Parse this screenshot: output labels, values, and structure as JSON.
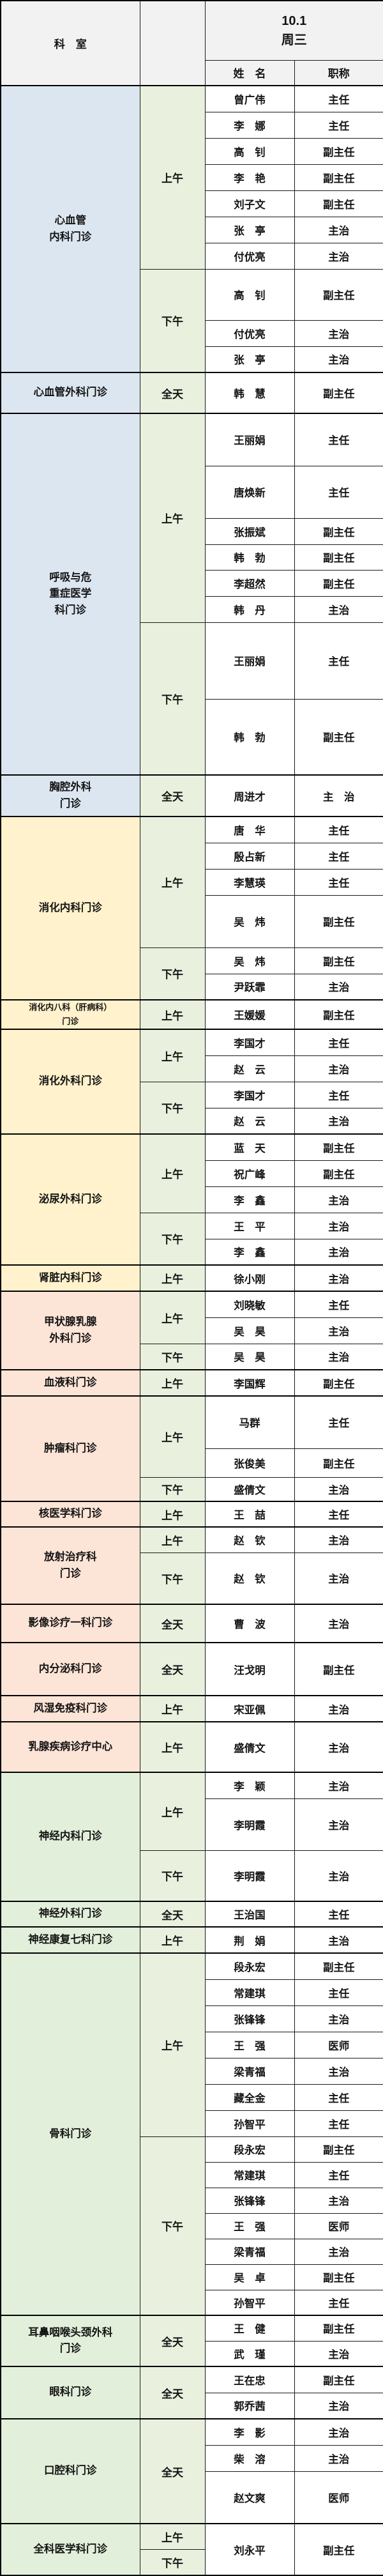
{
  "header": {
    "dept_label": "科　室",
    "date": "10.1",
    "weekday": "周三",
    "name_label": "姓　名",
    "title_label": "职称"
  },
  "colors": {
    "header_bg": "#f2f2f2",
    "blue": "#dce6f1",
    "yellow": "#fff2cc",
    "pink": "#fce4d6",
    "green": "#e2efda",
    "time": "#e9f1de",
    "border": "#000000"
  },
  "sections": [
    {
      "dept": [
        "心血管",
        "内科门诊"
      ],
      "color": "blue",
      "periods": [
        {
          "label": "上午",
          "rows": [
            {
              "name": "曾广伟",
              "title": "主任",
              "h": 41
            },
            {
              "name": "李　娜",
              "title": "主任",
              "h": 41
            },
            {
              "name": "高　钊",
              "title": "副主任",
              "h": 41
            },
            {
              "name": "李　艳",
              "title": "副主任",
              "h": 41
            },
            {
              "name": "刘子文",
              "title": "副主任",
              "h": 41
            },
            {
              "name": "张　亭",
              "title": "主治",
              "h": 41
            },
            {
              "name": "付优亮",
              "title": "主治",
              "h": 41
            }
          ]
        },
        {
          "label": "下午",
          "rows": [
            {
              "name": "高　钊",
              "title": "副主任",
              "h": 80
            },
            {
              "name": "付优亮",
              "title": "主治",
              "h": 41
            },
            {
              "name": "张　亭",
              "title": "主治",
              "h": 41
            }
          ]
        }
      ]
    },
    {
      "dept": [
        "心血管外科门诊"
      ],
      "color": "blue",
      "periods": [
        {
          "label": "全天",
          "rows": [
            {
              "name": "韩　慧",
              "title": "副主任",
              "h": 64
            }
          ]
        }
      ]
    },
    {
      "dept": [
        "呼吸与危",
        "重症医学",
        "科门诊"
      ],
      "color": "blue",
      "periods": [
        {
          "label": "上午",
          "rows": [
            {
              "name": "王丽娟",
              "title": "主任",
              "h": 82
            },
            {
              "name": "唐焕新",
              "title": "主任",
              "h": 82
            },
            {
              "name": "张振斌",
              "title": "副主任",
              "h": 41
            },
            {
              "name": "韩　勃",
              "title": "副主任",
              "h": 40
            },
            {
              "name": "李超然",
              "title": "副主任",
              "h": 41
            },
            {
              "name": "韩　丹",
              "title": "主治",
              "h": 41
            }
          ]
        },
        {
          "label": "下午",
          "rows": [
            {
              "name": "王丽娟",
              "title": "主任",
              "h": 120
            },
            {
              "name": "韩　勃",
              "title": "副主任",
              "h": 119
            }
          ]
        }
      ]
    },
    {
      "dept": [
        "胸腔外科",
        "门诊"
      ],
      "color": "blue",
      "periods": [
        {
          "label": "全天",
          "rows": [
            {
              "name": "周进才",
              "title": "主　治",
              "h": 65
            }
          ]
        }
      ]
    },
    {
      "dept": [
        "消化内科门诊"
      ],
      "color": "yellow",
      "periods": [
        {
          "label": "上午",
          "rows": [
            {
              "name": "唐　华",
              "title": "主任",
              "h": 41
            },
            {
              "name": "殷占新",
              "title": "主任",
              "h": 41
            },
            {
              "name": "李慧瑛",
              "title": "主任",
              "h": 41
            },
            {
              "name": "吴　炜",
              "title": "副主任",
              "h": 82
            }
          ]
        },
        {
          "label": "下午",
          "rows": [
            {
              "name": "吴　炜",
              "title": "副主任",
              "h": 41
            },
            {
              "name": "尹跃霏",
              "title": "主治",
              "h": 41
            }
          ]
        }
      ]
    },
    {
      "dept": [
        "消化内八科（肝病科）",
        "门诊"
      ],
      "color": "yellow",
      "periods": [
        {
          "label": "上午",
          "rows": [
            {
              "name": "王媛媛",
              "title": "副主任",
              "h": 45
            }
          ]
        }
      ]
    },
    {
      "dept": [
        "消化外科门诊"
      ],
      "color": "yellow",
      "periods": [
        {
          "label": "上午",
          "rows": [
            {
              "name": "李国才",
              "title": "主任",
              "h": 41
            },
            {
              "name": "赵　云",
              "title": "主治",
              "h": 41
            }
          ]
        },
        {
          "label": "下午",
          "rows": [
            {
              "name": "李国才",
              "title": "主任",
              "h": 41
            },
            {
              "name": "赵　云",
              "title": "主治",
              "h": 41
            }
          ]
        }
      ]
    },
    {
      "dept": [
        "泌尿外科门诊"
      ],
      "color": "yellow",
      "periods": [
        {
          "label": "上午",
          "rows": [
            {
              "name": "蓝　天",
              "title": "副主任",
              "h": 41
            },
            {
              "name": "祝广峰",
              "title": "副主任",
              "h": 41
            },
            {
              "name": "李　鑫",
              "title": "主治",
              "h": 41
            }
          ]
        },
        {
          "label": "下午",
          "rows": [
            {
              "name": "王　平",
              "title": "主治",
              "h": 41
            },
            {
              "name": "李　鑫",
              "title": "主治",
              "h": 41
            }
          ]
        }
      ]
    },
    {
      "dept": [
        "肾脏内科门诊"
      ],
      "color": "yellow",
      "periods": [
        {
          "label": "上午",
          "rows": [
            {
              "name": "徐小刚",
              "title": "主治",
              "h": 41
            }
          ]
        }
      ]
    },
    {
      "dept": [
        "甲状腺乳腺",
        "外科门诊"
      ],
      "color": "pink",
      "periods": [
        {
          "label": "上午",
          "rows": [
            {
              "name": "刘晓敏",
              "title": "主任",
              "h": 41
            },
            {
              "name": "吴　昊",
              "title": "主治",
              "h": 41
            }
          ]
        },
        {
          "label": "下午",
          "rows": [
            {
              "name": "吴　昊",
              "title": "主治",
              "h": 41
            }
          ]
        }
      ]
    },
    {
      "dept": [
        "血液科门诊"
      ],
      "color": "pink",
      "periods": [
        {
          "label": "上午",
          "rows": [
            {
              "name": "李国辉",
              "title": "副主任",
              "h": 41
            }
          ]
        }
      ]
    },
    {
      "dept": [
        "肿瘤科门诊"
      ],
      "color": "pink",
      "periods": [
        {
          "label": "上午",
          "rows": [
            {
              "name": "马群",
              "title": "主任",
              "h": 82
            },
            {
              "name": "张俊美",
              "title": "副主任",
              "h": 45
            }
          ]
        },
        {
          "label": "下午",
          "rows": [
            {
              "name": "盛倩文",
              "title": "主治",
              "h": 38
            }
          ]
        }
      ]
    },
    {
      "dept": [
        "核医学科门诊"
      ],
      "color": "pink",
      "periods": [
        {
          "label": "上午",
          "rows": [
            {
              "name": "王　喆",
              "title": "主任",
              "h": 40
            }
          ]
        }
      ]
    },
    {
      "dept": [
        "放射治疗科",
        "门诊"
      ],
      "color": "pink",
      "periods": [
        {
          "label": "上午",
          "rows": [
            {
              "name": "赵　钦",
              "title": "主治",
              "h": 40
            }
          ]
        },
        {
          "label": "下午",
          "rows": [
            {
              "name": "赵　钦",
              "title": "主治",
              "h": 81
            }
          ]
        }
      ]
    },
    {
      "dept": [
        "影像诊疗一科门诊"
      ],
      "color": "pink",
      "periods": [
        {
          "label": "全天",
          "rows": [
            {
              "name": "曹　波",
              "title": "主治",
              "h": 60
            }
          ]
        }
      ]
    },
    {
      "dept": [
        "内分泌科门诊"
      ],
      "color": "pink",
      "periods": [
        {
          "label": "全天",
          "rows": [
            {
              "name": "汪戈明",
              "title": "副主任",
              "h": 83
            }
          ]
        }
      ]
    },
    {
      "dept": [
        "风湿免疫科门诊"
      ],
      "color": "pink",
      "periods": [
        {
          "label": "上午",
          "rows": [
            {
              "name": "宋亚佩",
              "title": "主治",
              "h": 41
            }
          ]
        }
      ]
    },
    {
      "dept": [
        "乳腺疾病诊疗中心"
      ],
      "color": "pink",
      "periods": [
        {
          "label": "上午",
          "rows": [
            {
              "name": "盛倩文",
              "title": "主治",
              "h": 79
            }
          ]
        }
      ]
    },
    {
      "dept": [
        "神经内科门诊"
      ],
      "color": "green",
      "periods": [
        {
          "label": "上午",
          "rows": [
            {
              "name": "李　颖",
              "title": "主治",
              "h": 41
            },
            {
              "name": "李明霞",
              "title": "主治",
              "h": 81
            }
          ]
        },
        {
          "label": "下午",
          "rows": [
            {
              "name": "李明霞",
              "title": "主治",
              "h": 80
            }
          ]
        }
      ]
    },
    {
      "dept": [
        "神经外科门诊"
      ],
      "color": "green",
      "periods": [
        {
          "label": "全天",
          "rows": [
            {
              "name": "王治国",
              "title": "主任",
              "h": 40
            }
          ]
        }
      ]
    },
    {
      "dept": [
        "神经康复七科门诊"
      ],
      "color": "green",
      "periods": [
        {
          "label": "上午",
          "rows": [
            {
              "name": "荆　娟",
              "title": "主治",
              "h": 41
            }
          ]
        }
      ]
    },
    {
      "dept": [
        "骨科门诊"
      ],
      "color": "green",
      "periods": [
        {
          "label": "上午",
          "rows": [
            {
              "name": "段永宏",
              "title": "副主任",
              "h": 41
            },
            {
              "name": "常建琪",
              "title": "主任",
              "h": 41
            },
            {
              "name": "张锋锋",
              "title": "主治",
              "h": 41
            },
            {
              "name": "王　强",
              "title": "医师",
              "h": 41
            },
            {
              "name": "梁青福",
              "title": "主治",
              "h": 41
            },
            {
              "name": "藏全金",
              "title": "主任",
              "h": 41
            },
            {
              "name": "孙智平",
              "title": "主任",
              "h": 41
            }
          ]
        },
        {
          "label": "下午",
          "rows": [
            {
              "name": "段永宏",
              "title": "副主任",
              "h": 40
            },
            {
              "name": "常建琪",
              "title": "主任",
              "h": 40
            },
            {
              "name": "张锋锋",
              "title": "主治",
              "h": 40
            },
            {
              "name": "王　强",
              "title": "医师",
              "h": 40
            },
            {
              "name": "梁青福",
              "title": "主治",
              "h": 40
            },
            {
              "name": "吴　卓",
              "title": "副主任",
              "h": 40
            },
            {
              "name": "孙智平",
              "title": "主任",
              "h": 40
            }
          ]
        }
      ]
    },
    {
      "dept": [
        "耳鼻咽喉头颈外科",
        "门诊"
      ],
      "color": "green",
      "periods": [
        {
          "label": "全天",
          "rows": [
            {
              "name": "王　健",
              "title": "副主任",
              "h": 40
            },
            {
              "name": "武　瑾",
              "title": "主治",
              "h": 40
            }
          ]
        }
      ]
    },
    {
      "dept": [
        "眼科门诊"
      ],
      "color": "green",
      "periods": [
        {
          "label": "全天",
          "rows": [
            {
              "name": "王在忠",
              "title": "副主任",
              "h": 41
            },
            {
              "name": "郭乔茜",
              "title": "主治",
              "h": 41
            }
          ]
        }
      ]
    },
    {
      "dept": [
        "口腔科门诊"
      ],
      "color": "green",
      "periods": [
        {
          "label": "全天",
          "rows": [
            {
              "name": "李　影",
              "title": "主治",
              "h": 41
            },
            {
              "name": "柴　溶",
              "title": "主治",
              "h": 41
            },
            {
              "name": "赵文爽",
              "title": "医师",
              "h": 82
            }
          ]
        }
      ]
    },
    {
      "dept": [
        "全科医学科门诊"
      ],
      "color": "green",
      "merged": true,
      "period_labels": [
        "上午",
        "下午"
      ],
      "period_heights": [
        40,
        41
      ],
      "row": {
        "name": "刘永平",
        "title": "副主任"
      }
    }
  ]
}
